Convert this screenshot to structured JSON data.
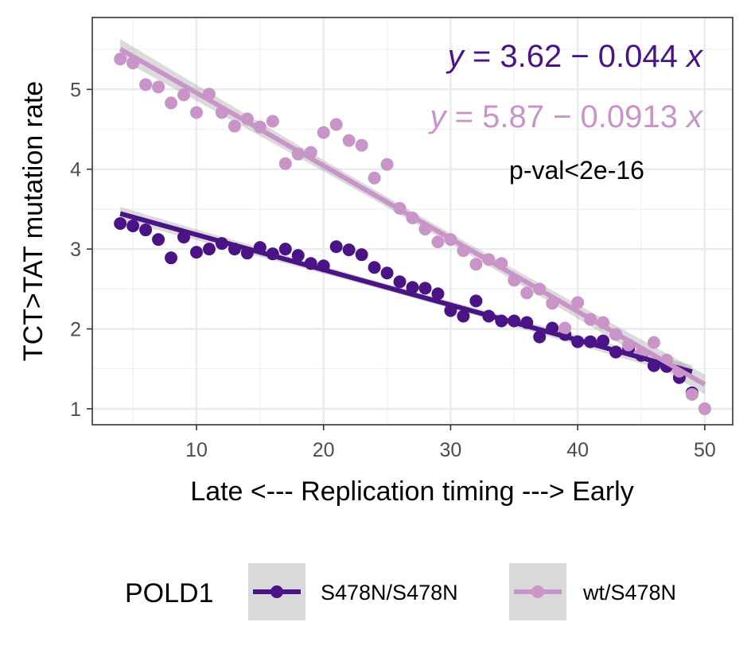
{
  "chart_data": {
    "type": "scatter",
    "title": "",
    "xlabel": "Late <--- Replication timing ---> Early",
    "ylabel": "TCT>TAT mutation rate",
    "xlim": [
      1.8,
      52.2
    ],
    "ylim": [
      0.8,
      5.9
    ],
    "x_ticks": [
      10,
      20,
      30,
      40,
      50
    ],
    "y_ticks": [
      1,
      2,
      3,
      4,
      5
    ],
    "grid": true,
    "legend_position": "bottom",
    "legend_title": "POLD1",
    "annotations": {
      "equation_1": {
        "y": "y",
        "eq": " = 3.62 − 0.044 ",
        "x": "x",
        "color": "#4a1486"
      },
      "equation_2": {
        "y": "y",
        "eq": " = 5.87 − 0.0913 ",
        "x": "x",
        "color": "#c994c7"
      },
      "pval": "p-val<2e-16"
    },
    "series": [
      {
        "name": "S478N/S478N",
        "color": "#4a1486",
        "fit": {
          "intercept": 3.62,
          "slope": -0.044
        },
        "x": [
          4,
          5,
          6,
          7,
          8,
          9,
          10,
          11,
          12,
          13,
          14,
          15,
          16,
          17,
          18,
          19,
          20,
          21,
          22,
          23,
          24,
          25,
          26,
          27,
          28,
          29,
          30,
          31,
          32,
          33,
          34,
          35,
          36,
          37,
          38,
          39,
          40,
          41,
          42,
          43,
          44,
          45,
          46,
          47,
          48,
          49
        ],
        "y": [
          3.32,
          3.29,
          3.24,
          3.12,
          2.89,
          3.15,
          2.96,
          3.0,
          3.07,
          3.0,
          2.95,
          3.02,
          2.94,
          3.0,
          2.92,
          2.82,
          2.79,
          3.03,
          2.99,
          2.93,
          2.77,
          2.7,
          2.59,
          2.52,
          2.51,
          2.44,
          2.23,
          2.16,
          2.35,
          2.16,
          2.1,
          2.1,
          2.08,
          1.9,
          2.01,
          1.93,
          1.84,
          1.84,
          1.85,
          1.71,
          1.75,
          1.67,
          1.54,
          1.53,
          1.39,
          1.2
        ]
      },
      {
        "name": "wt/S478N",
        "color": "#c994c7",
        "fit": {
          "intercept": 5.87,
          "slope": -0.0913
        },
        "x": [
          4,
          5,
          6,
          7,
          8,
          9,
          10,
          11,
          12,
          13,
          14,
          15,
          16,
          17,
          18,
          19,
          20,
          21,
          22,
          23,
          24,
          25,
          26,
          27,
          28,
          29,
          30,
          31,
          32,
          33,
          34,
          35,
          36,
          37,
          38,
          39,
          40,
          41,
          42,
          43,
          44,
          45,
          46,
          47,
          48,
          49,
          50
        ],
        "y": [
          5.38,
          5.33,
          5.06,
          5.03,
          4.83,
          4.93,
          4.71,
          4.94,
          4.71,
          4.54,
          4.63,
          4.53,
          4.6,
          4.07,
          4.19,
          4.21,
          4.46,
          4.56,
          4.36,
          4.3,
          3.89,
          4.06,
          3.51,
          3.39,
          3.25,
          3.09,
          3.12,
          2.98,
          2.81,
          2.87,
          2.82,
          2.61,
          2.45,
          2.5,
          2.32,
          2.01,
          2.33,
          2.12,
          2.08,
          1.93,
          1.8,
          1.69,
          1.83,
          1.61,
          1.47,
          1.18,
          1.0
        ]
      }
    ]
  }
}
